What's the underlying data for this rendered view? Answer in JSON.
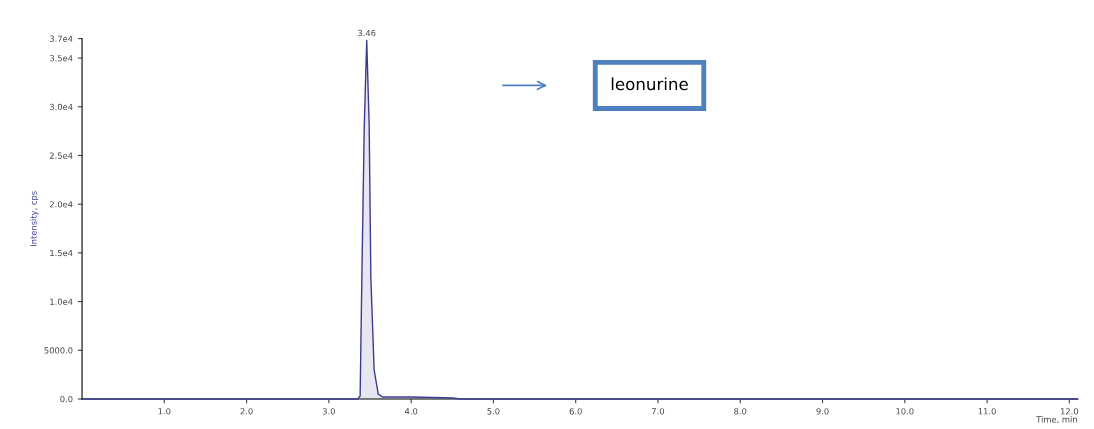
{
  "chart_data": {
    "type": "line",
    "xlabel": "Time, min",
    "ylabel": "Intensity, cps",
    "x": [
      0,
      3.35,
      3.38,
      3.4,
      3.43,
      3.46,
      3.49,
      3.51,
      3.55,
      3.6,
      3.65,
      4.0,
      4.5,
      4.6,
      12.1
    ],
    "series": [
      {
        "color": "#3b3b8f",
        "values": [
          0,
          0,
          300,
          12000,
          28000,
          36800,
          28000,
          12500,
          3000,
          500,
          200,
          200,
          100,
          0,
          0
        ]
      }
    ],
    "xlim": [
      0,
      12.1
    ],
    "ylim": [
      0,
      37000
    ],
    "xticks": [
      {
        "value": 1,
        "label": "1.0"
      },
      {
        "value": 2,
        "label": "2.0"
      },
      {
        "value": 3,
        "label": "3.0"
      },
      {
        "value": 4,
        "label": "4.0"
      },
      {
        "value": 5,
        "label": "5.0"
      },
      {
        "value": 6,
        "label": "6.0"
      },
      {
        "value": 7,
        "label": "7.0"
      },
      {
        "value": 8,
        "label": "8.0"
      },
      {
        "value": 9,
        "label": "9.0"
      },
      {
        "value": 10,
        "label": "10.0"
      },
      {
        "value": 11,
        "label": "11.0"
      },
      {
        "value": 12,
        "label": "12.0"
      }
    ],
    "yticks": [
      {
        "value": 0,
        "label": "0.0"
      },
      {
        "value": 5000,
        "label": "5000.0"
      },
      {
        "value": 10000,
        "label": "1.0e4"
      },
      {
        "value": 15000,
        "label": "1.5e4"
      },
      {
        "value": 20000,
        "label": "2.0e4"
      },
      {
        "value": 25000,
        "label": "2.5e4"
      },
      {
        "value": 30000,
        "label": "3.0e4"
      },
      {
        "value": 35000,
        "label": "3.5e4"
      },
      {
        "value": 37000,
        "label": "3.7e4"
      }
    ],
    "annotations": [
      {
        "text": "3.46",
        "x": 3.46,
        "y": 36800
      },
      "leonurine"
    ],
    "grid": false,
    "marker": "none",
    "line_style": "solid"
  }
}
